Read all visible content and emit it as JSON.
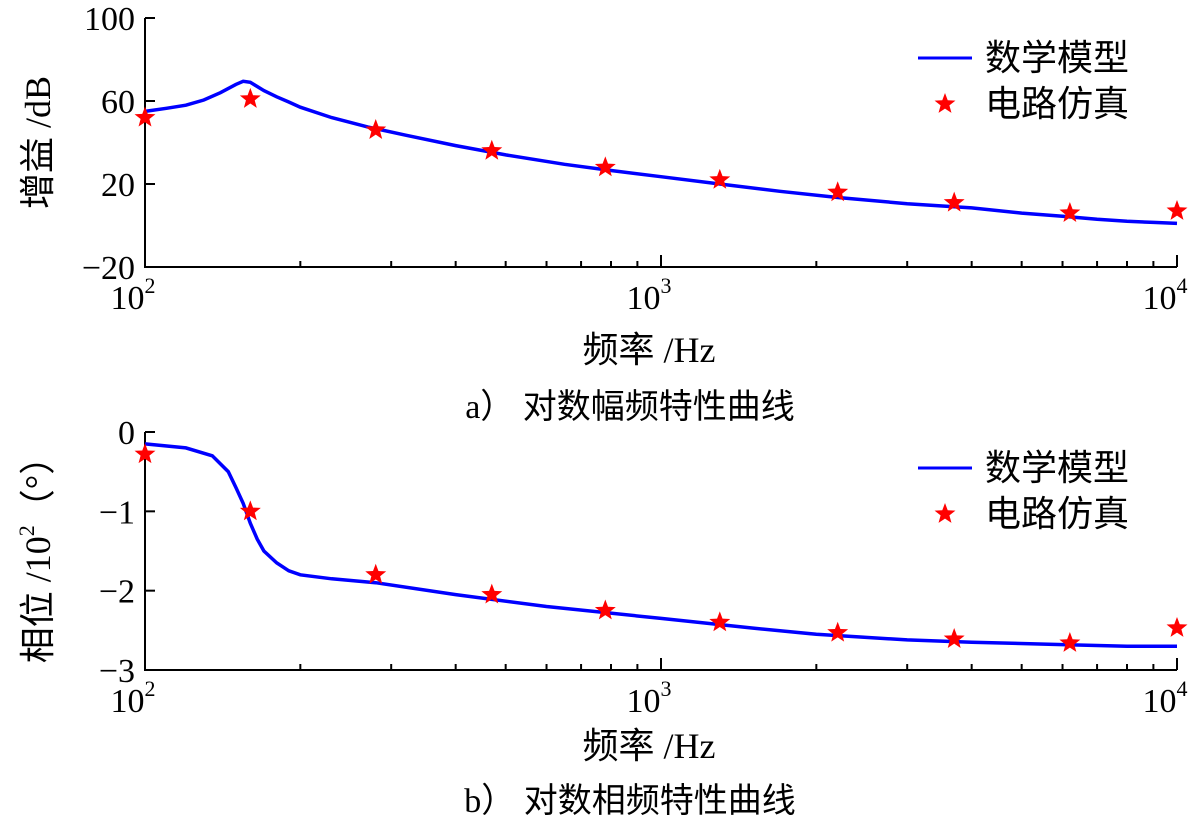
{
  "chart_data": [
    {
      "type": "line",
      "xscale": "log",
      "xlim": [
        100,
        10000
      ],
      "ylim": [
        -20,
        100
      ],
      "xlabel": "频率 /Hz",
      "ylabel": "增益 /dB",
      "caption": "a） 对数幅频特性曲线",
      "x_ticks": [
        {
          "base": "10",
          "exp": "2"
        },
        {
          "base": "10",
          "exp": "3"
        },
        {
          "base": "10",
          "exp": "4"
        }
      ],
      "y_ticks": [
        "100",
        "60",
        "20",
        "−20"
      ],
      "y_tick_values": [
        100,
        60,
        20,
        -20
      ],
      "legend": {
        "position": "top-right",
        "entries": [
          "数学模型",
          "电路仿真"
        ]
      },
      "series": [
        {
          "name": "数学模型",
          "style": "line",
          "color": "#0000ff",
          "x": [
            100,
            110,
            120,
            130,
            140,
            150,
            155,
            160,
            165,
            170,
            180,
            190,
            200,
            230,
            270,
            320,
            400,
            500,
            650,
            800,
            1000,
            1300,
            1700,
            2200,
            3000,
            4000,
            5000,
            6000,
            7000,
            8000,
            9000,
            10000
          ],
          "y": [
            55,
            56.5,
            58,
            60.5,
            64,
            68,
            69.5,
            69,
            67,
            65,
            62,
            59.5,
            57,
            52,
            47.5,
            43.5,
            38.5,
            34,
            29.5,
            26.5,
            23.5,
            20,
            16.5,
            13.5,
            10.5,
            8.5,
            6,
            4.5,
            3,
            2,
            1.5,
            1
          ]
        },
        {
          "name": "电路仿真",
          "style": "star",
          "color": "#ff0000",
          "x": [
            100,
            160,
            280,
            470,
            780,
            1300,
            2200,
            3700,
            6200,
            10000
          ],
          "y": [
            52,
            61,
            46,
            36,
            28,
            22,
            16,
            11,
            6,
            7
          ]
        }
      ]
    },
    {
      "type": "line",
      "xscale": "log",
      "xlim": [
        100,
        10000
      ],
      "ylim": [
        -3,
        0
      ],
      "xlabel": "频率 /Hz",
      "ylabel_main": "相位 /10",
      "ylabel_exp": "2",
      "ylabel_unit": "（°）",
      "caption": "b） 对数相频特性曲线",
      "x_ticks": [
        {
          "base": "10",
          "exp": "2"
        },
        {
          "base": "10",
          "exp": "3"
        },
        {
          "base": "10",
          "exp": "4"
        }
      ],
      "y_ticks": [
        "0",
        "−1",
        "−2",
        "−3"
      ],
      "y_tick_values": [
        0,
        -1,
        -2,
        -3
      ],
      "legend": {
        "position": "top-right",
        "entries": [
          "数学模型",
          "电路仿真"
        ]
      },
      "series": [
        {
          "name": "数学模型",
          "style": "line",
          "color": "#0000ff",
          "x": [
            100,
            120,
            135,
            145,
            150,
            155,
            160,
            165,
            170,
            180,
            190,
            200,
            230,
            280,
            400,
            600,
            1000,
            1500,
            2000,
            3000,
            4000,
            6000,
            8000,
            10000
          ],
          "y": [
            -0.15,
            -0.2,
            -0.3,
            -0.5,
            -0.7,
            -0.9,
            -1.15,
            -1.35,
            -1.5,
            -1.65,
            -1.75,
            -1.8,
            -1.85,
            -1.9,
            -2.05,
            -2.2,
            -2.35,
            -2.47,
            -2.55,
            -2.62,
            -2.65,
            -2.68,
            -2.7,
            -2.7
          ]
        },
        {
          "name": "电路仿真",
          "style": "star",
          "color": "#ff0000",
          "x": [
            100,
            160,
            280,
            470,
            780,
            1300,
            2200,
            3700,
            6200,
            10000
          ],
          "y": [
            -0.28,
            -1.0,
            -1.8,
            -2.05,
            -2.25,
            -2.4,
            -2.53,
            -2.61,
            -2.66,
            -2.47
          ]
        }
      ]
    }
  ]
}
